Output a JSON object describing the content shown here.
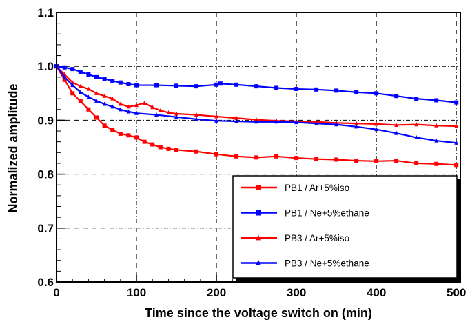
{
  "chart_data": {
    "type": "line",
    "title": "",
    "xlabel": "Time since the voltage switch on (min)",
    "ylabel": "Normalized amplitude",
    "xlim": [
      0,
      505
    ],
    "ylim": [
      0.6,
      1.1
    ],
    "xticks": [
      0,
      100,
      200,
      300,
      400,
      500
    ],
    "yticks": [
      0.6,
      0.7,
      0.8,
      0.9,
      1.0,
      1.1
    ],
    "xtick_labels": [
      "0",
      "100",
      "200",
      "300",
      "400",
      "500"
    ],
    "ytick_labels": [
      "0.6",
      "0.7",
      "0.8",
      "0.9",
      "1.0",
      "1.1"
    ],
    "grid": true,
    "legend_position": "lower-right",
    "series": [
      {
        "name": "PB1 / Ar+5%iso",
        "color": "#ff0000",
        "marker": "square",
        "x": [
          0,
          10,
          20,
          30,
          40,
          50,
          60,
          70,
          80,
          90,
          100,
          110,
          120,
          130,
          140,
          150,
          175,
          200,
          225,
          250,
          275,
          300,
          325,
          350,
          375,
          400,
          425,
          450,
          475,
          500
        ],
        "y": [
          1.0,
          0.975,
          0.95,
          0.935,
          0.92,
          0.905,
          0.89,
          0.882,
          0.875,
          0.872,
          0.868,
          0.86,
          0.855,
          0.85,
          0.847,
          0.845,
          0.842,
          0.837,
          0.833,
          0.831,
          0.833,
          0.83,
          0.828,
          0.827,
          0.825,
          0.824,
          0.825,
          0.82,
          0.819,
          0.817
        ]
      },
      {
        "name": "PB1 / Ne+5%ethane",
        "color": "#0000ff",
        "marker": "square",
        "x": [
          0,
          10,
          20,
          30,
          40,
          50,
          60,
          70,
          80,
          90,
          100,
          125,
          150,
          175,
          200,
          205,
          225,
          250,
          275,
          300,
          325,
          350,
          375,
          400,
          425,
          450,
          475,
          500
        ],
        "y": [
          1.0,
          0.998,
          0.995,
          0.99,
          0.985,
          0.98,
          0.977,
          0.973,
          0.97,
          0.967,
          0.965,
          0.965,
          0.964,
          0.963,
          0.966,
          0.968,
          0.966,
          0.963,
          0.96,
          0.958,
          0.957,
          0.955,
          0.952,
          0.95,
          0.945,
          0.94,
          0.937,
          0.933
        ]
      },
      {
        "name": "PB3 / Ar+5%iso",
        "color": "#ff0000",
        "marker": "triangle",
        "x": [
          0,
          10,
          20,
          30,
          40,
          50,
          60,
          70,
          80,
          90,
          100,
          110,
          120,
          130,
          140,
          150,
          175,
          200,
          225,
          250,
          275,
          300,
          325,
          350,
          375,
          400,
          425,
          450,
          475,
          500
        ],
        "y": [
          1.0,
          0.985,
          0.97,
          0.963,
          0.958,
          0.95,
          0.945,
          0.94,
          0.93,
          0.925,
          0.928,
          0.932,
          0.924,
          0.918,
          0.914,
          0.912,
          0.91,
          0.907,
          0.904,
          0.901,
          0.899,
          0.898,
          0.897,
          0.895,
          0.894,
          0.893,
          0.891,
          0.892,
          0.89,
          0.889
        ]
      },
      {
        "name": "PB3 / Ne+5%ethane",
        "color": "#0000ff",
        "marker": "triangle",
        "x": [
          0,
          10,
          20,
          30,
          40,
          50,
          60,
          70,
          80,
          90,
          100,
          125,
          150,
          175,
          200,
          225,
          250,
          275,
          300,
          325,
          350,
          375,
          400,
          425,
          450,
          475,
          500
        ],
        "y": [
          1.0,
          0.98,
          0.965,
          0.952,
          0.943,
          0.936,
          0.93,
          0.925,
          0.92,
          0.916,
          0.913,
          0.91,
          0.906,
          0.902,
          0.899,
          0.898,
          0.897,
          0.897,
          0.896,
          0.894,
          0.892,
          0.888,
          0.883,
          0.876,
          0.868,
          0.862,
          0.858
        ]
      }
    ]
  }
}
